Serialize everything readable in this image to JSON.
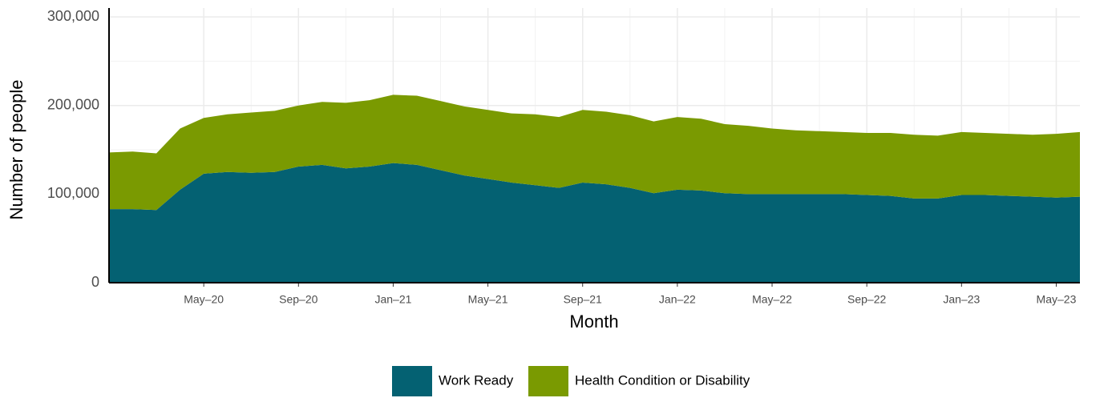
{
  "chart_data": {
    "type": "stacked_area",
    "x_label": "Month",
    "y_label": "Number of people",
    "x": [
      "2020-01",
      "2020-02",
      "2020-03",
      "2020-04",
      "2020-05",
      "2020-06",
      "2020-07",
      "2020-08",
      "2020-09",
      "2020-10",
      "2020-11",
      "2020-12",
      "2021-01",
      "2021-02",
      "2021-03",
      "2021-04",
      "2021-05",
      "2021-06",
      "2021-07",
      "2021-08",
      "2021-09",
      "2021-10",
      "2021-11",
      "2021-12",
      "2022-01",
      "2022-02",
      "2022-03",
      "2022-04",
      "2022-05",
      "2022-06",
      "2022-07",
      "2022-08",
      "2022-09",
      "2022-10",
      "2022-11",
      "2022-12",
      "2023-01",
      "2023-02",
      "2023-03",
      "2023-04",
      "2023-05",
      "2023-06"
    ],
    "series": [
      {
        "name": "Work Ready",
        "color": "#046172",
        "values": [
          83000,
          83000,
          82000,
          105000,
          123000,
          125000,
          124000,
          125000,
          131000,
          133000,
          129000,
          131000,
          135000,
          133000,
          127000,
          121000,
          117000,
          113000,
          110000,
          107000,
          113000,
          111000,
          107000,
          101000,
          105000,
          104000,
          101000,
          100000,
          100000,
          100000,
          100000,
          100000,
          99000,
          98000,
          95000,
          95000,
          99000,
          99000,
          98000,
          97000,
          96000,
          97000
        ]
      },
      {
        "name": "Health Condition or Disability",
        "color": "#7a9a01",
        "values": [
          64000,
          65000,
          64000,
          69000,
          63000,
          65000,
          68000,
          69000,
          69000,
          71000,
          74000,
          75000,
          77000,
          78000,
          78000,
          78000,
          78000,
          78000,
          80000,
          80000,
          82000,
          82000,
          82000,
          81000,
          82000,
          81000,
          78000,
          77000,
          74000,
          72000,
          71000,
          70000,
          70000,
          71000,
          72000,
          71000,
          71000,
          70000,
          70000,
          70000,
          72000,
          73000
        ]
      }
    ],
    "xlim": [
      "2020-01",
      "2023-06"
    ],
    "xticks": [
      {
        "value": "2020-05",
        "label": "May–20"
      },
      {
        "value": "2020-09",
        "label": "Sep–20"
      },
      {
        "value": "2021-01",
        "label": "Jan–21"
      },
      {
        "value": "2021-05",
        "label": "May–21"
      },
      {
        "value": "2021-09",
        "label": "Sep–21"
      },
      {
        "value": "2022-01",
        "label": "Jan–22"
      },
      {
        "value": "2022-05",
        "label": "May–22"
      },
      {
        "value": "2022-09",
        "label": "Sep–22"
      },
      {
        "value": "2023-01",
        "label": "Jan–23"
      },
      {
        "value": "2023-05",
        "label": "May–23"
      }
    ],
    "ylim": [
      0,
      310000
    ],
    "yticks": [
      0,
      {
        "value": 100000,
        "label": "100,000"
      },
      {
        "value": 200000,
        "label": "200,000"
      },
      {
        "value": 300000,
        "label": "300,000"
      }
    ],
    "grid": true,
    "legend": "bottom"
  }
}
